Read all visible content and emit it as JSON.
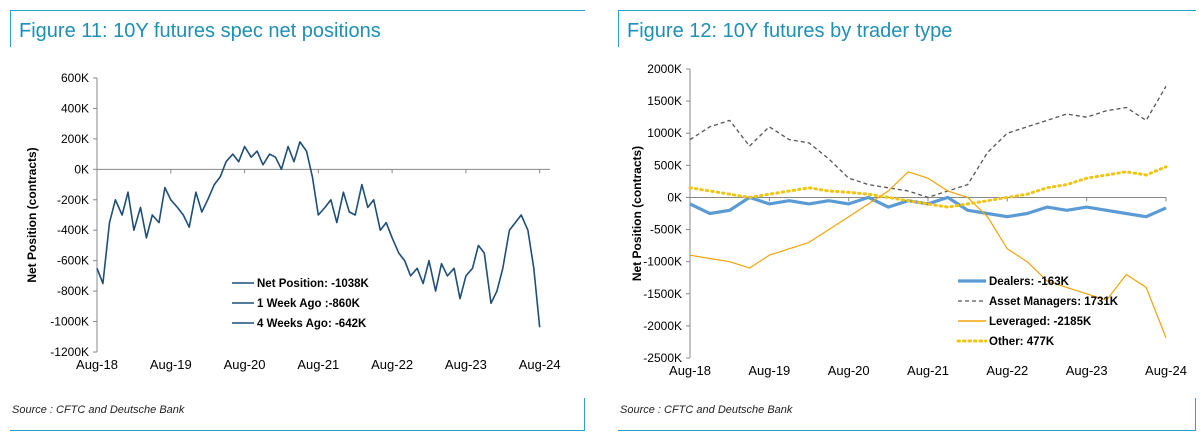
{
  "figures": [
    {
      "title": "Figure 11: 10Y futures spec net positions",
      "source": "Source : CFTC and Deutsche Bank"
    },
    {
      "title": "Figure 12: 10Y futures by trader type",
      "source": "Source : CFTC and Deutsche Bank"
    }
  ],
  "chart_data": [
    {
      "type": "line",
      "ylabel": "Net Position (contracts)",
      "xlabel": "",
      "ylim": [
        -1200,
        600
      ],
      "yticks": [
        600,
        400,
        200,
        0,
        -200,
        -400,
        -600,
        -800,
        -1000,
        -1200
      ],
      "ytick_labels": [
        "600K",
        "400K",
        "200K",
        "0K",
        "-200K",
        "-400K",
        "-600K",
        "-800K",
        "-1000K",
        "-1200K"
      ],
      "xlim": [
        2018.58,
        2024.72
      ],
      "xticks": [
        2018.58,
        2019.58,
        2020.58,
        2021.58,
        2022.58,
        2023.58,
        2024.58
      ],
      "xtick_labels": [
        "Aug-18",
        "Aug-19",
        "Aug-20",
        "Aug-21",
        "Aug-22",
        "Aug-23",
        "Aug-24"
      ],
      "legend_position": "bottom-center",
      "color": "#1f4e79",
      "legend": [
        "Net Position: -1038K",
        "1 Week Ago :-860K",
        "4 Weeks Ago: -642K"
      ],
      "series": [
        {
          "name": "Net Position",
          "x": [
            2018.58,
            2018.66,
            2018.75,
            2018.83,
            2018.92,
            2019.0,
            2019.08,
            2019.17,
            2019.25,
            2019.33,
            2019.42,
            2019.5,
            2019.58,
            2019.67,
            2019.75,
            2019.83,
            2019.92,
            2020.0,
            2020.08,
            2020.17,
            2020.25,
            2020.33,
            2020.42,
            2020.5,
            2020.58,
            2020.67,
            2020.75,
            2020.83,
            2020.92,
            2021.0,
            2021.08,
            2021.17,
            2021.25,
            2021.33,
            2021.42,
            2021.5,
            2021.58,
            2021.67,
            2021.75,
            2021.83,
            2021.92,
            2022.0,
            2022.08,
            2022.17,
            2022.25,
            2022.33,
            2022.42,
            2022.5,
            2022.58,
            2022.67,
            2022.75,
            2022.83,
            2022.92,
            2023.0,
            2023.08,
            2023.17,
            2023.25,
            2023.33,
            2023.42,
            2023.5,
            2023.58,
            2023.67,
            2023.75,
            2023.83,
            2023.92,
            2024.0,
            2024.08,
            2024.17,
            2024.25,
            2024.33,
            2024.42,
            2024.5,
            2024.58
          ],
          "y": [
            -650,
            -750,
            -350,
            -200,
            -300,
            -150,
            -400,
            -250,
            -450,
            -300,
            -350,
            -120,
            -200,
            -250,
            -300,
            -380,
            -150,
            -280,
            -200,
            -100,
            -50,
            50,
            100,
            50,
            150,
            80,
            120,
            30,
            100,
            80,
            0,
            150,
            50,
            180,
            120,
            -50,
            -300,
            -250,
            -200,
            -350,
            -150,
            -280,
            -300,
            -100,
            -250,
            -200,
            -400,
            -350,
            -450,
            -550,
            -600,
            -700,
            -650,
            -750,
            -600,
            -800,
            -620,
            -700,
            -650,
            -850,
            -700,
            -650,
            -500,
            -550,
            -880,
            -800,
            -650,
            -400,
            -350,
            -300,
            -400,
            -650,
            -1038
          ]
        }
      ]
    },
    {
      "type": "line",
      "ylabel": "Net Position (contracts)",
      "xlabel": "",
      "ylim": [
        -2500,
        2000
      ],
      "yticks": [
        2000,
        1500,
        1000,
        500,
        0,
        -500,
        -1000,
        -1500,
        -2000,
        -2500
      ],
      "ytick_labels": [
        "2000K",
        "1500K",
        "1000K",
        "500K",
        "0K",
        "-500K",
        "-1000K",
        "-1500K",
        "-2000K",
        "-2500K"
      ],
      "xlim": [
        2018.58,
        2024.58
      ],
      "xticks": [
        2018.58,
        2019.58,
        2020.58,
        2021.58,
        2022.58,
        2023.58,
        2024.58
      ],
      "xtick_labels": [
        "Aug-18",
        "Aug-19",
        "Aug-20",
        "Aug-21",
        "Aug-22",
        "Aug-23",
        "Aug-24"
      ],
      "legend_position": "bottom-right",
      "legend": [
        "Dealers: -163K",
        "Asset Managers: 1731K",
        "Leveraged: -2185K",
        "Other: 477K"
      ],
      "series": [
        {
          "name": "Dealers",
          "color": "#5b9bd5",
          "style": "solid-thick",
          "x": [
            2018.58,
            2018.83,
            2019.08,
            2019.33,
            2019.58,
            2019.83,
            2020.08,
            2020.33,
            2020.58,
            2020.83,
            2021.08,
            2021.33,
            2021.58,
            2021.83,
            2022.08,
            2022.33,
            2022.58,
            2022.83,
            2023.08,
            2023.33,
            2023.58,
            2023.83,
            2024.08,
            2024.33,
            2024.58
          ],
          "y": [
            -100,
            -250,
            -200,
            0,
            -100,
            -50,
            -100,
            -50,
            -100,
            0,
            -150,
            -50,
            -100,
            0,
            -200,
            -250,
            -300,
            -250,
            -150,
            -200,
            -150,
            -200,
            -250,
            -300,
            -163
          ]
        },
        {
          "name": "Asset Managers",
          "color": "#555555",
          "style": "dashed",
          "x": [
            2018.58,
            2018.83,
            2019.08,
            2019.33,
            2019.58,
            2019.83,
            2020.08,
            2020.33,
            2020.58,
            2020.83,
            2021.08,
            2021.33,
            2021.58,
            2021.83,
            2022.08,
            2022.33,
            2022.58,
            2022.83,
            2023.08,
            2023.33,
            2023.58,
            2023.83,
            2024.08,
            2024.33,
            2024.58
          ],
          "y": [
            900,
            1100,
            1200,
            800,
            1100,
            900,
            850,
            600,
            300,
            200,
            150,
            100,
            0,
            100,
            200,
            700,
            1000,
            1100,
            1200,
            1300,
            1250,
            1350,
            1400,
            1200,
            1731
          ]
        },
        {
          "name": "Leveraged",
          "color": "#f0a30a",
          "style": "solid",
          "x": [
            2018.58,
            2018.83,
            2019.08,
            2019.33,
            2019.58,
            2019.83,
            2020.08,
            2020.33,
            2020.58,
            2020.83,
            2021.08,
            2021.33,
            2021.58,
            2021.83,
            2022.08,
            2022.33,
            2022.58,
            2022.83,
            2023.08,
            2023.33,
            2023.58,
            2023.83,
            2024.08,
            2024.33,
            2024.58
          ],
          "y": [
            -900,
            -950,
            -1000,
            -1100,
            -900,
            -800,
            -700,
            -500,
            -300,
            -100,
            100,
            400,
            300,
            100,
            0,
            -300,
            -800,
            -1000,
            -1300,
            -1400,
            -1500,
            -1600,
            -1200,
            -1400,
            -2185
          ]
        },
        {
          "name": "Other",
          "color": "#f2c40f",
          "style": "dotted",
          "x": [
            2018.58,
            2018.83,
            2019.08,
            2019.33,
            2019.58,
            2019.83,
            2020.08,
            2020.33,
            2020.58,
            2020.83,
            2021.08,
            2021.33,
            2021.58,
            2021.83,
            2022.08,
            2022.33,
            2022.58,
            2022.83,
            2023.08,
            2023.33,
            2023.58,
            2023.83,
            2024.08,
            2024.33,
            2024.58
          ],
          "y": [
            150,
            100,
            50,
            0,
            50,
            100,
            150,
            100,
            80,
            50,
            0,
            -50,
            -100,
            -150,
            -100,
            -50,
            0,
            50,
            150,
            200,
            300,
            350,
            400,
            350,
            477
          ]
        }
      ]
    }
  ]
}
